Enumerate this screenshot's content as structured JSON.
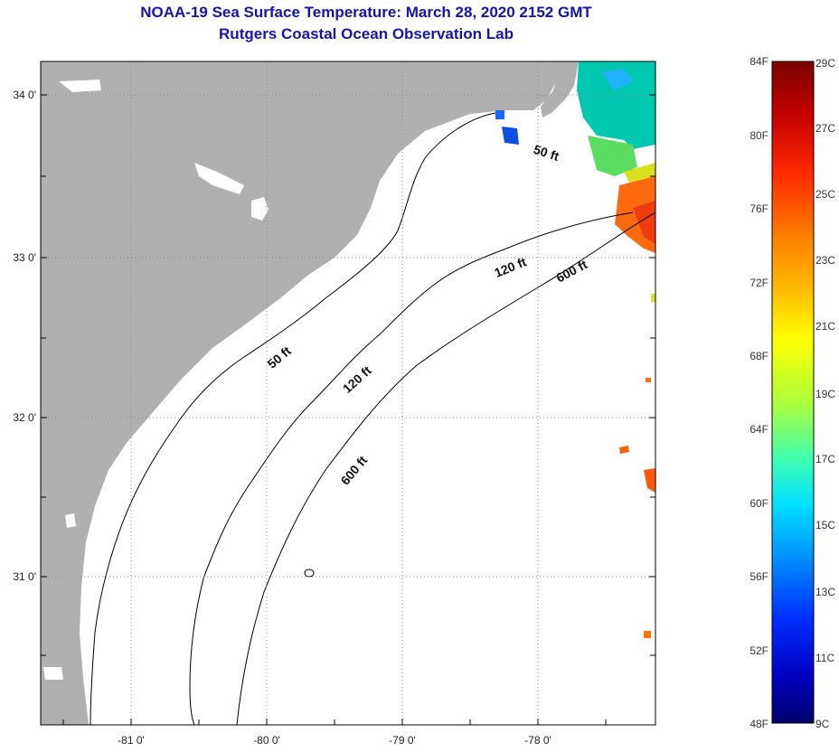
{
  "header": {
    "title": "NOAA-19 Sea Surface Temperature:  March 28, 2020 2152 GMT",
    "subtitle": "Rutgers Coastal Ocean Observation Lab"
  },
  "map": {
    "lon_labels": [
      "-81 0'",
      "-80 0'",
      "-79 0'",
      "-78 0'"
    ],
    "lat_labels": [
      "34 0'",
      "33 0'",
      "32 0'",
      "31 0'"
    ],
    "depth_labels": [
      {
        "id": "50ft-north",
        "text": "50 ft"
      },
      {
        "id": "120ft-north",
        "text": "120 ft"
      },
      {
        "id": "600ft-north",
        "text": "600 ft"
      },
      {
        "id": "50ft-south",
        "text": "50 ft"
      },
      {
        "id": "120ft-south",
        "text": "120 ft"
      },
      {
        "id": "600ft-south",
        "text": "600 ft"
      }
    ],
    "colors": {
      "land": "#b0b0b0",
      "ocean": "#ffffff",
      "grid": "#888888"
    }
  },
  "colorbar": {
    "fahrenheit": [
      "84F",
      "80F",
      "76F",
      "72F",
      "68F",
      "64F",
      "60F",
      "56F",
      "52F",
      "48F"
    ],
    "celsius": [
      "29C",
      "27C",
      "25C",
      "23C",
      "21C",
      "19C",
      "17C",
      "15C",
      "13C",
      "11C",
      "9C"
    ],
    "gradient": [
      "#7a0000",
      "#c40000",
      "#ff2a00",
      "#ff7a00",
      "#ffc000",
      "#ffff00",
      "#a8ff40",
      "#40ffb0",
      "#00e0ff",
      "#0090ff",
      "#0030ff",
      "#0000c0",
      "#00006a"
    ]
  }
}
